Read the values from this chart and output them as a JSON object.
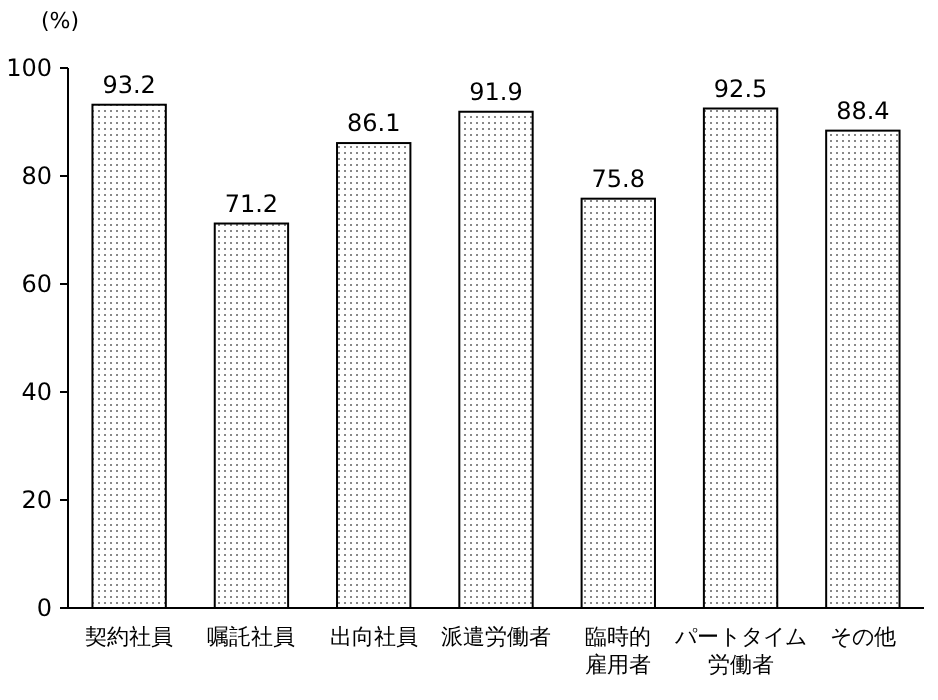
{
  "chart_data": {
    "type": "bar",
    "ylabel": "(%)",
    "categories": [
      "契約社員",
      "嘱託社員",
      "出向社員",
      "派遣労働者",
      "臨時的雇用者",
      "パートタイム労働者",
      "その他"
    ],
    "values": [
      93.2,
      71.2,
      86.1,
      91.9,
      75.8,
      92.5,
      88.4
    ],
    "color": "#ffffff",
    "ylim": [
      0,
      100
    ],
    "yticks": [
      0,
      20,
      40,
      60,
      80,
      100
    ],
    "grid": false,
    "data_labels": true
  }
}
